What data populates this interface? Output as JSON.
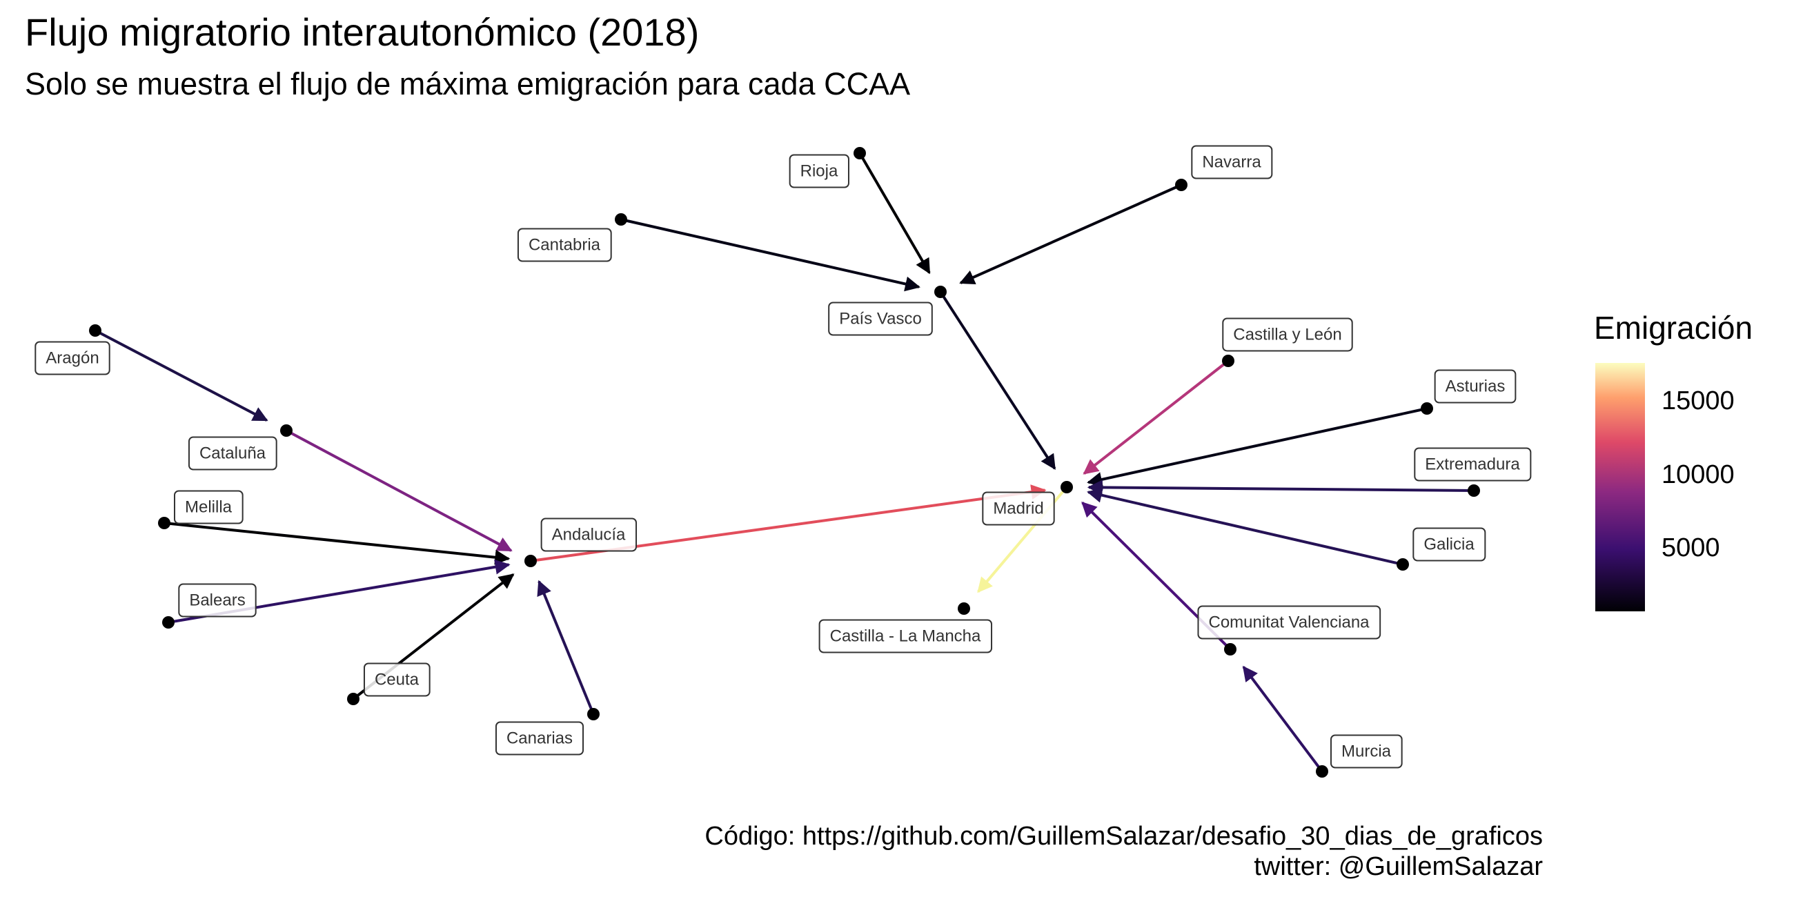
{
  "title": "Flujo migratorio interautonómico (2018)",
  "subtitle": "Solo se muestra el flujo de máxima emigración para cada CCAA",
  "caption": {
    "line1": "Código: https://github.com/GuillemSalazar/desafio_30_dias_de_graficos",
    "line2": "twitter: @GuillemSalazar"
  },
  "legend": {
    "title": "Emigración",
    "ticks": [
      "15000",
      "10000",
      "5000"
    ]
  },
  "nodes": [
    {
      "id": "rioja",
      "label": "Rioja"
    },
    {
      "id": "navarra",
      "label": "Navarra"
    },
    {
      "id": "cantabria",
      "label": "Cantabria"
    },
    {
      "id": "pais-vasco",
      "label": "País Vasco"
    },
    {
      "id": "aragon",
      "label": "Aragón"
    },
    {
      "id": "cataluna",
      "label": "Cataluña"
    },
    {
      "id": "castilla-leon",
      "label": "Castilla y León"
    },
    {
      "id": "asturias",
      "label": "Asturias"
    },
    {
      "id": "extremadura",
      "label": "Extremadura"
    },
    {
      "id": "madrid",
      "label": "Madrid"
    },
    {
      "id": "melilla",
      "label": "Melilla"
    },
    {
      "id": "andalucia",
      "label": "Andalucía"
    },
    {
      "id": "galicia",
      "label": "Galicia"
    },
    {
      "id": "baleares",
      "label": "Balears"
    },
    {
      "id": "castilla-la-mancha",
      "label": "Castilla - La Mancha"
    },
    {
      "id": "comunitat-valenciana",
      "label": "Comunitat Valenciana"
    },
    {
      "id": "ceuta",
      "label": "Ceuta"
    },
    {
      "id": "canarias",
      "label": "Canarias"
    },
    {
      "id": "murcia",
      "label": "Murcia"
    }
  ],
  "edges": [
    {
      "from": "rioja",
      "to": "pais-vasco",
      "value": 700,
      "color": "#000004"
    },
    {
      "from": "navarra",
      "to": "pais-vasco",
      "value": 900,
      "color": "#03020f"
    },
    {
      "from": "cantabria",
      "to": "pais-vasco",
      "value": 1000,
      "color": "#050416"
    },
    {
      "from": "pais-vasco",
      "to": "madrid",
      "value": 1500,
      "color": "#0a0721"
    },
    {
      "from": "aragon",
      "to": "cataluna",
      "value": 2500,
      "color": "#1d1147"
    },
    {
      "from": "cataluna",
      "to": "andalucia",
      "value": 8000,
      "color": "#7d2382"
    },
    {
      "from": "castilla-leon",
      "to": "madrid",
      "value": 10000,
      "color": "#b5367a"
    },
    {
      "from": "asturias",
      "to": "madrid",
      "value": 1200,
      "color": "#050416"
    },
    {
      "from": "extremadura",
      "to": "madrid",
      "value": 3000,
      "color": "#251255"
    },
    {
      "from": "melilla",
      "to": "andalucia",
      "value": 600,
      "color": "#000004"
    },
    {
      "from": "andalucia",
      "to": "madrid",
      "value": 13500,
      "color": "#e24d5b"
    },
    {
      "from": "galicia",
      "to": "madrid",
      "value": 3000,
      "color": "#251255"
    },
    {
      "from": "baleares",
      "to": "andalucia",
      "value": 3500,
      "color": "#2e1163"
    },
    {
      "from": "madrid",
      "to": "castilla-la-mancha",
      "value": 17500,
      "color": "#f6f49a"
    },
    {
      "from": "comunitat-valenciana",
      "to": "madrid",
      "value": 5500,
      "color": "#4b117a"
    },
    {
      "from": "ceuta",
      "to": "andalucia",
      "value": 600,
      "color": "#000004"
    },
    {
      "from": "canarias",
      "to": "andalucia",
      "value": 3000,
      "color": "#251255"
    },
    {
      "from": "murcia",
      "to": "comunitat-valenciana",
      "value": 3500,
      "color": "#2e1163"
    }
  ]
}
